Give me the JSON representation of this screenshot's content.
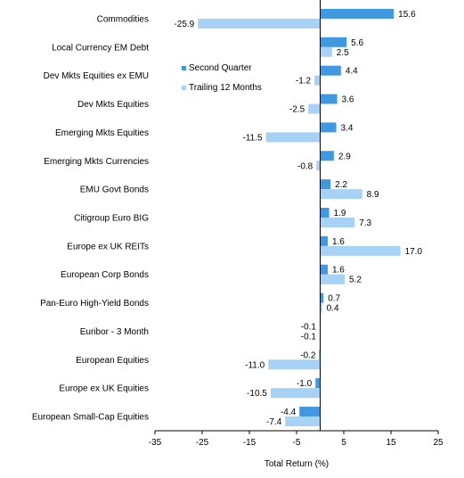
{
  "chart_data": {
    "type": "bar",
    "orientation": "horizontal",
    "categories": [
      "Commodities",
      "Local Currency EM Debt",
      "Dev Mkts Equities ex EMU",
      "Dev Mkts Equities",
      "Emerging Mkts Equities",
      "Emerging Mkts Currencies",
      "EMU Govt Bonds",
      "Citigroup Euro BIG",
      "Europe ex UK REITs",
      "European Corp Bonds",
      "Pan-Euro High-Yield Bonds",
      "Euribor - 3 Month",
      "European Equities",
      "Europe ex UK Equities",
      "European Small-Cap Equities"
    ],
    "series": [
      {
        "name": "Second Quarter",
        "color": "#3f98e0",
        "values": [
          15.6,
          5.6,
          4.4,
          3.6,
          3.4,
          2.9,
          2.2,
          1.9,
          1.6,
          1.6,
          0.7,
          -0.1,
          -0.2,
          -1.0,
          -4.4
        ],
        "labels": [
          "15.6",
          "5.6",
          "4.4",
          "3.6",
          "3.4",
          "2.9",
          "2.2",
          "1.9",
          "1.6",
          "1.6",
          "0.7",
          "-0.1",
          "-0.2",
          "-1.0",
          "-4.4"
        ]
      },
      {
        "name": "Trailing 12 Months",
        "color": "#a8d1f6",
        "values": [
          -25.9,
          2.5,
          -1.2,
          -2.5,
          -11.5,
          -0.8,
          8.9,
          7.3,
          17.0,
          5.2,
          0.4,
          -0.1,
          -11.0,
          -10.5,
          -7.4
        ],
        "labels": [
          "-25.9",
          "2.5",
          "-1.2",
          "-2.5",
          "-11.5",
          "-0.8",
          "8.9",
          "7.3",
          "17.0",
          "5.2",
          "0.4",
          "-0.1",
          "-11.0",
          "-10.5",
          "-7.4"
        ]
      }
    ],
    "xlim": [
      -35,
      25
    ],
    "xticks": [
      -35,
      -25,
      -15,
      -5,
      5,
      15,
      25
    ],
    "xlabel": "Total Return (%)",
    "grid": false,
    "legend_position": "upper-middle"
  }
}
